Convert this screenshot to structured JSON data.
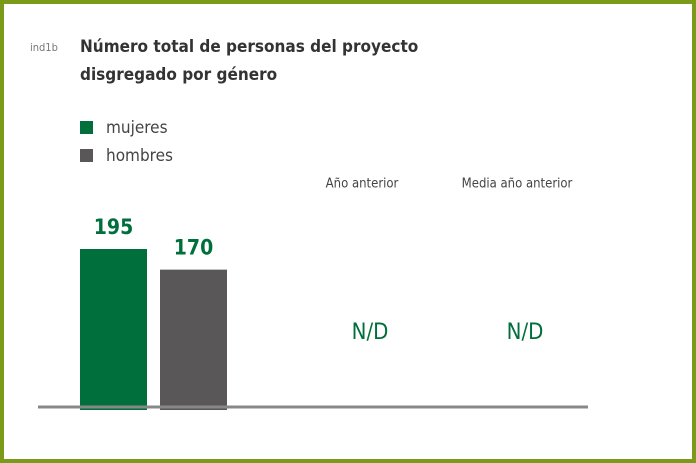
{
  "chart_data": {
    "type": "bar",
    "code": "ind1b",
    "title": [
      "Número total de personas del proyecto",
      "disgregado por género"
    ],
    "series": [
      {
        "name": "mujeres",
        "color": "#006f3c",
        "values": [
          195
        ]
      },
      {
        "name": "hombres",
        "color": "#5a5759",
        "values": [
          170
        ]
      }
    ],
    "label_color": "#006f3c",
    "border_color": "#7a9a1a",
    "comparisons": [
      {
        "header": "Año anterior",
        "value": "N/D"
      },
      {
        "header": "Media año anterior",
        "value": "N/D"
      }
    ]
  }
}
